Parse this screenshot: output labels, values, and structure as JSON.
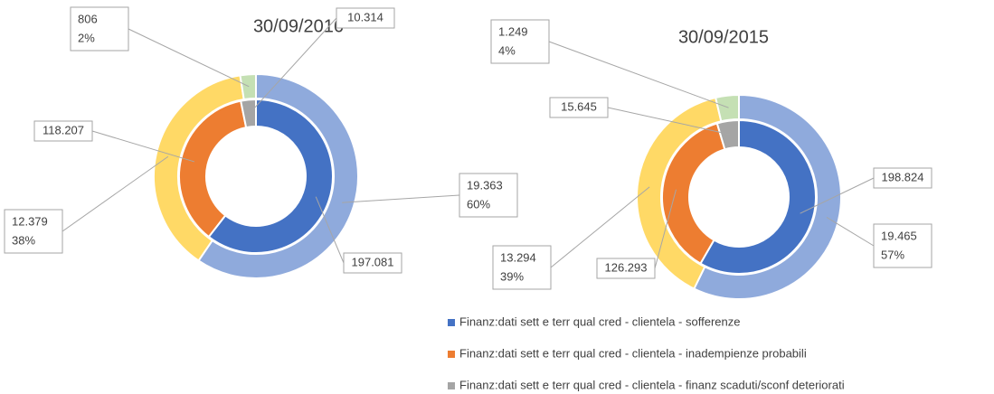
{
  "chart_data": [
    {
      "type": "donut",
      "title": "30/09/2016",
      "inner": {
        "colors": [
          "#4472c4",
          "#ed7d31",
          "#a5a5a5"
        ],
        "values": [
          197081,
          118207,
          10314
        ],
        "value_labels": [
          "197.081",
          "118.207",
          "10.314"
        ]
      },
      "outer": {
        "colors": [
          "#8faadc",
          "#ffd966",
          "#c5e0b4"
        ],
        "values": [
          19363,
          12379,
          806
        ],
        "value_labels": [
          "19.363",
          "12.379",
          "806"
        ],
        "percents": [
          60,
          38,
          2
        ],
        "percent_labels": [
          "60%",
          "38%",
          "2%"
        ]
      }
    },
    {
      "type": "donut",
      "title": "30/09/2015",
      "inner": {
        "colors": [
          "#4472c4",
          "#ed7d31",
          "#a5a5a5"
        ],
        "values": [
          198824,
          126293,
          15645
        ],
        "value_labels": [
          "198.824",
          "126.293",
          "15.645"
        ]
      },
      "outer": {
        "colors": [
          "#8faadc",
          "#ffd966",
          "#c5e0b4"
        ],
        "values": [
          19465,
          13294,
          1249
        ],
        "value_labels": [
          "19.465",
          "13.294",
          "1.249"
        ],
        "percents": [
          57,
          39,
          4
        ],
        "percent_labels": [
          "57%",
          "39%",
          "4%"
        ]
      }
    }
  ],
  "legend": {
    "labels": [
      "Finanz:dati sett e terr qual cred - clientela - sofferenze",
      "Finanz:dati sett e terr qual cred - clientela - inadempienze probabili",
      "Finanz:dati sett e terr qual cred - clientela - finanz scaduti/sconf deteriorati"
    ],
    "colors": [
      "#4472c4",
      "#ed7d31",
      "#a5a5a5"
    ]
  }
}
